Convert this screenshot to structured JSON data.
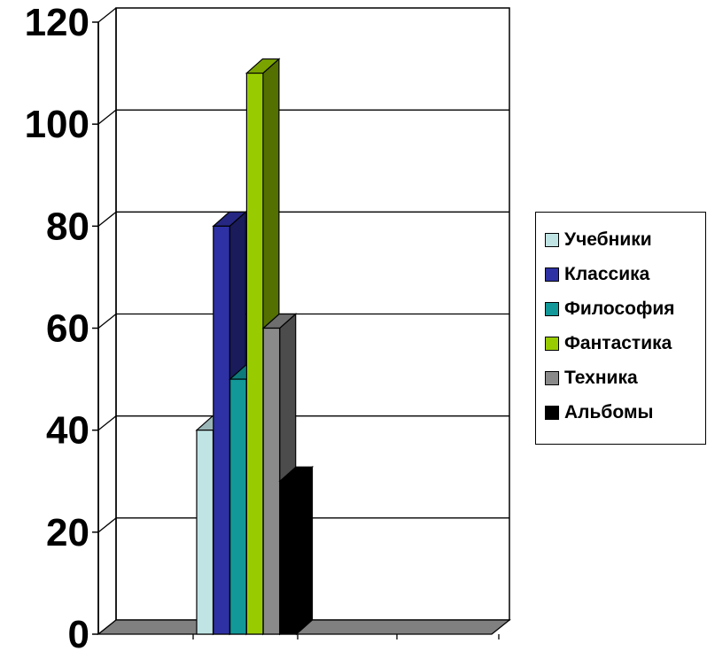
{
  "chart_data": {
    "type": "bar",
    "three_d": true,
    "categories": [
      ""
    ],
    "series": [
      {
        "name": "Учебники",
        "values": [
          40
        ],
        "color": "#c0e4e4"
      },
      {
        "name": "Классика",
        "values": [
          80
        ],
        "color": "#2e31a3"
      },
      {
        "name": "Философия",
        "values": [
          50
        ],
        "color": "#129898"
      },
      {
        "name": "Фантастика",
        "values": [
          110
        ],
        "color": "#99cc00"
      },
      {
        "name": "Техника",
        "values": [
          60
        ],
        "color": "#8a8a8a"
      },
      {
        "name": "Альбомы",
        "values": [
          30
        ],
        "color": "#000000"
      }
    ],
    "yticks": [
      "0",
      "20",
      "40",
      "60",
      "80",
      "100",
      "120"
    ],
    "ylim": [
      0,
      120
    ],
    "grid": true,
    "legend": "right",
    "floor_color": "#808080",
    "title": "",
    "xlabel": "",
    "ylabel": ""
  }
}
